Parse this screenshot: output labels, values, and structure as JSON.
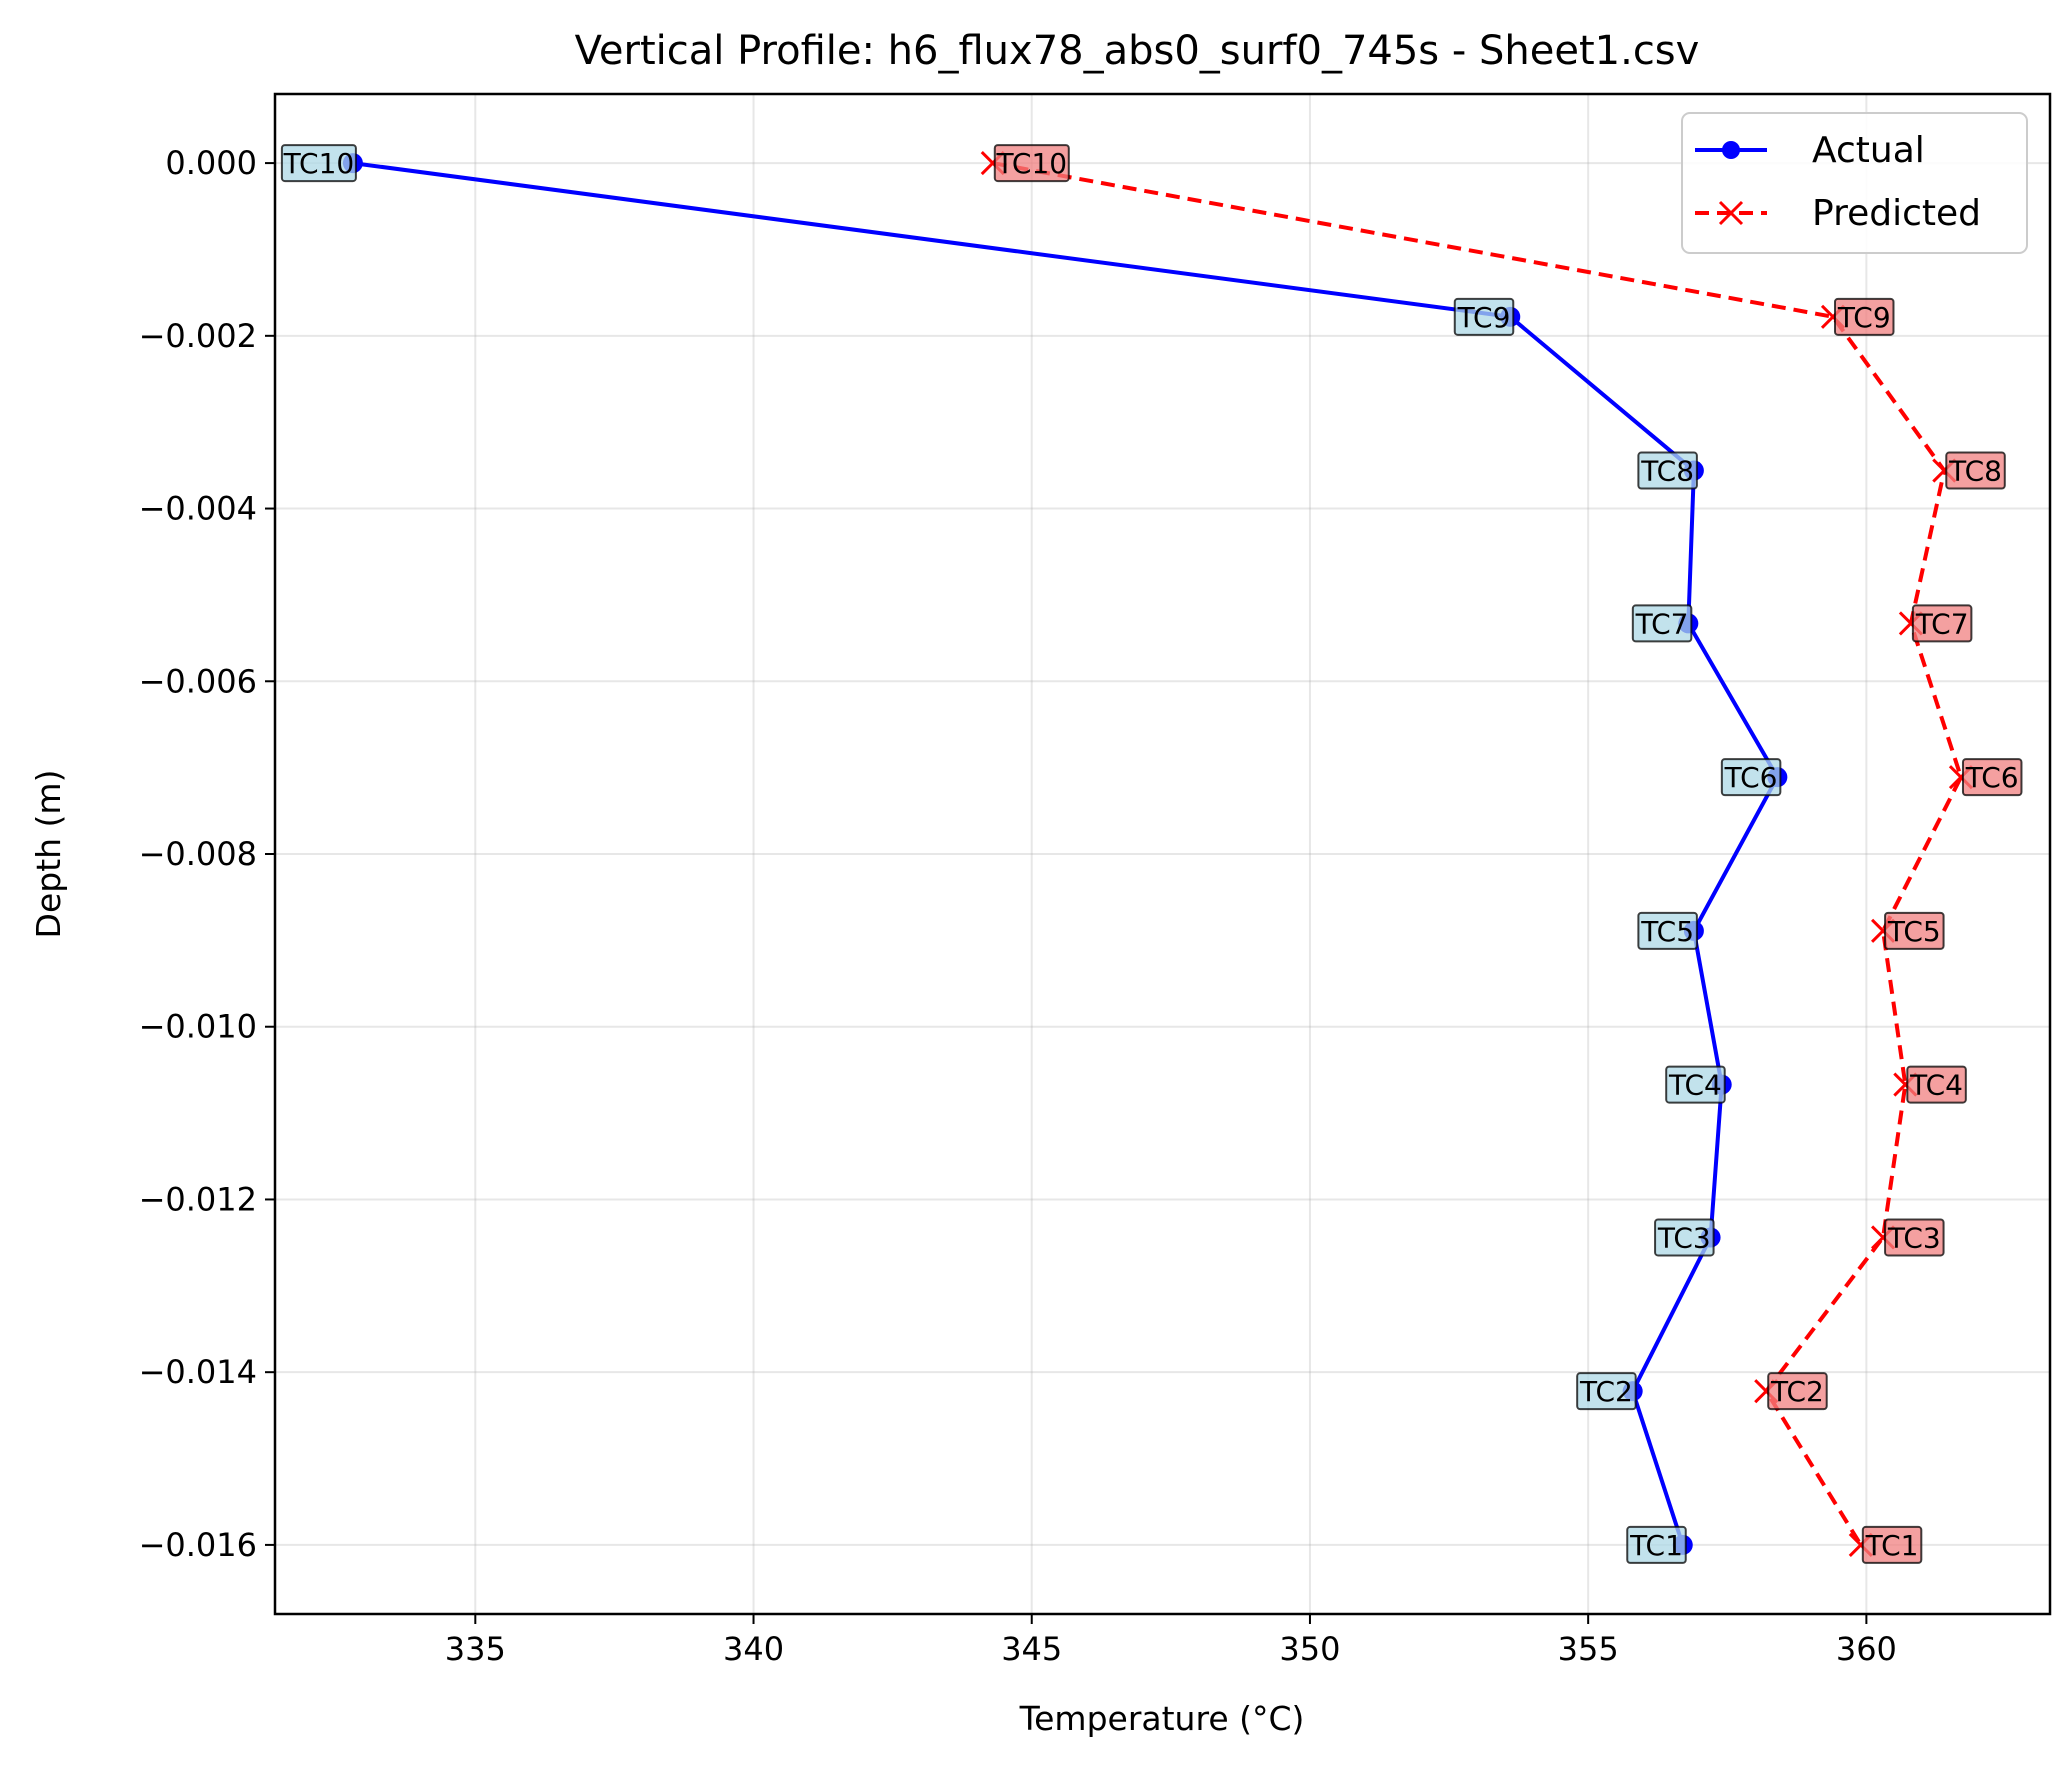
{
  "chart_data": {
    "type": "line",
    "title": "Vertical Profile: h6_flux78_abs0_surf0_745s - Sheet1.csv",
    "xlabel": "Temperature (°C)",
    "ylabel": "Depth (m)",
    "xlim": [
      331.4,
      363.3
    ],
    "ylim": [
      -0.0168,
      0.0008
    ],
    "xticks": [
      335,
      340,
      345,
      350,
      355,
      360
    ],
    "yticks": [
      0.0,
      -0.002,
      -0.004,
      -0.006,
      -0.008,
      -0.01,
      -0.012,
      -0.014,
      -0.016
    ],
    "xtick_labels": [
      "335",
      "340",
      "345",
      "350",
      "355",
      "360"
    ],
    "ytick_labels": [
      "0.000",
      "−0.002",
      "−0.004",
      "−0.006",
      "−0.008",
      "−0.010",
      "−0.012",
      "−0.014",
      "−0.016"
    ],
    "grid": true,
    "legend_position": "top-right",
    "point_labels": [
      "TC10",
      "TC9",
      "TC8",
      "TC7",
      "TC6",
      "TC5",
      "TC4",
      "TC3",
      "TC2",
      "TC1"
    ],
    "y": [
      0.0,
      -0.00178,
      -0.00356,
      -0.00533,
      -0.00711,
      -0.00889,
      -0.01067,
      -0.01244,
      -0.01422,
      -0.016
    ],
    "series": [
      {
        "name": "Actual",
        "color": "#0000ff",
        "label_bg": "#add8e6",
        "marker": "circle",
        "linestyle": "solid",
        "x": [
          332.8,
          353.6,
          356.9,
          356.8,
          358.4,
          356.9,
          357.4,
          357.2,
          355.8,
          356.7
        ]
      },
      {
        "name": "Predicted",
        "color": "#ff0000",
        "label_bg": "#f08080",
        "marker": "x",
        "linestyle": "dashed",
        "x": [
          344.3,
          359.4,
          361.4,
          360.8,
          361.7,
          360.3,
          360.7,
          360.3,
          358.2,
          359.9
        ]
      }
    ]
  }
}
